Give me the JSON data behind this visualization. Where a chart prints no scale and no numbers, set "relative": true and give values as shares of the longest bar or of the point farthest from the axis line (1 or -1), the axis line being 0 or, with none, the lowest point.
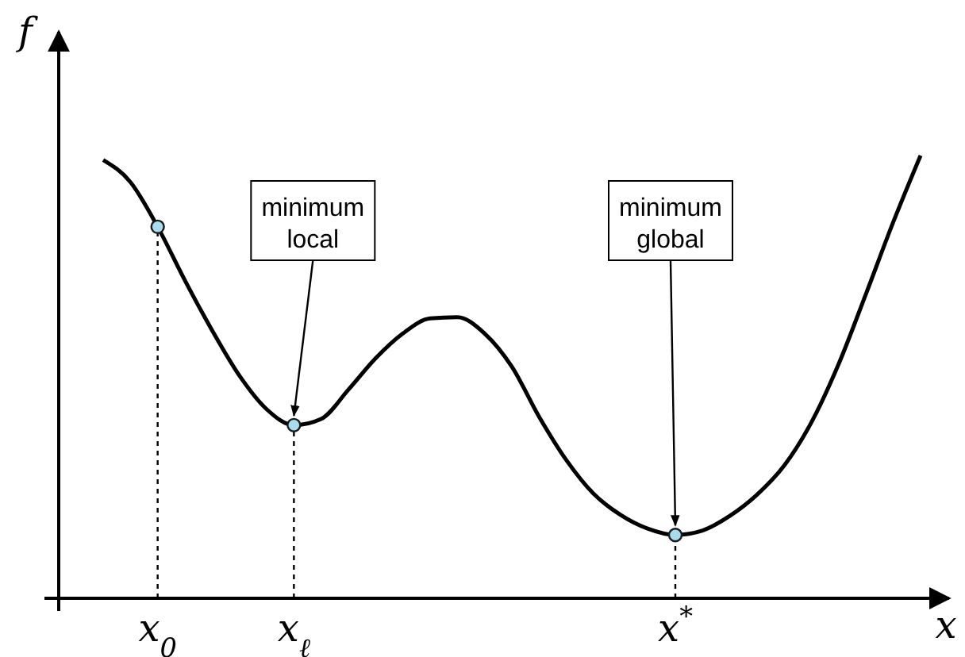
{
  "chart_data": {
    "type": "line",
    "relative": true,
    "xlabel": "x",
    "ylabel": "f",
    "categories": [
      null,
      null,
      "x$_{0}$",
      null,
      null,
      null,
      null,
      "x$_{ℓ}$",
      null,
      null,
      null,
      null,
      null,
      null,
      null,
      null,
      null,
      null,
      null,
      null,
      null,
      "x$^{*}$",
      null,
      null,
      null,
      null,
      null,
      null,
      null,
      null,
      null
    ],
    "series": [
      {
        "color": "#000000",
        "marker": "none",
        "line_style": "solid",
        "values": [
          0.99,
          0.94,
          0.839,
          0.718,
          0.605,
          0.503,
          0.427,
          0.391,
          0.405,
          0.471,
          0.542,
          0.598,
          0.632,
          0.635,
          0.598,
          0.523,
          0.41,
          0.312,
          0.236,
          0.188,
          0.157,
          0.143,
          0.153,
          0.186,
          0.234,
          0.3,
          0.398,
          0.53,
          0.688,
          0.85,
          1.0
        ]
      },
      {
        "type": "lollipop",
        "color": "#a8dcec",
        "marker": "circle",
        "line_style": "dotted",
        "values": [
          null,
          null,
          0.839,
          null,
          null,
          null,
          null,
          0.391,
          null,
          null,
          null,
          null,
          null,
          null,
          null,
          null,
          null,
          null,
          null,
          null,
          null,
          0.143,
          null,
          null,
          null,
          null,
          null,
          null,
          null,
          null,
          null
        ]
      }
    ],
    "annotations": [
      {
        "text": "minimum\nlocal",
        "x": "x$_{ℓ}$",
        "y": 0.391
      },
      {
        "text": "minimum\nglobal",
        "x": "x$^{*}$",
        "y": 0.143
      }
    ]
  }
}
